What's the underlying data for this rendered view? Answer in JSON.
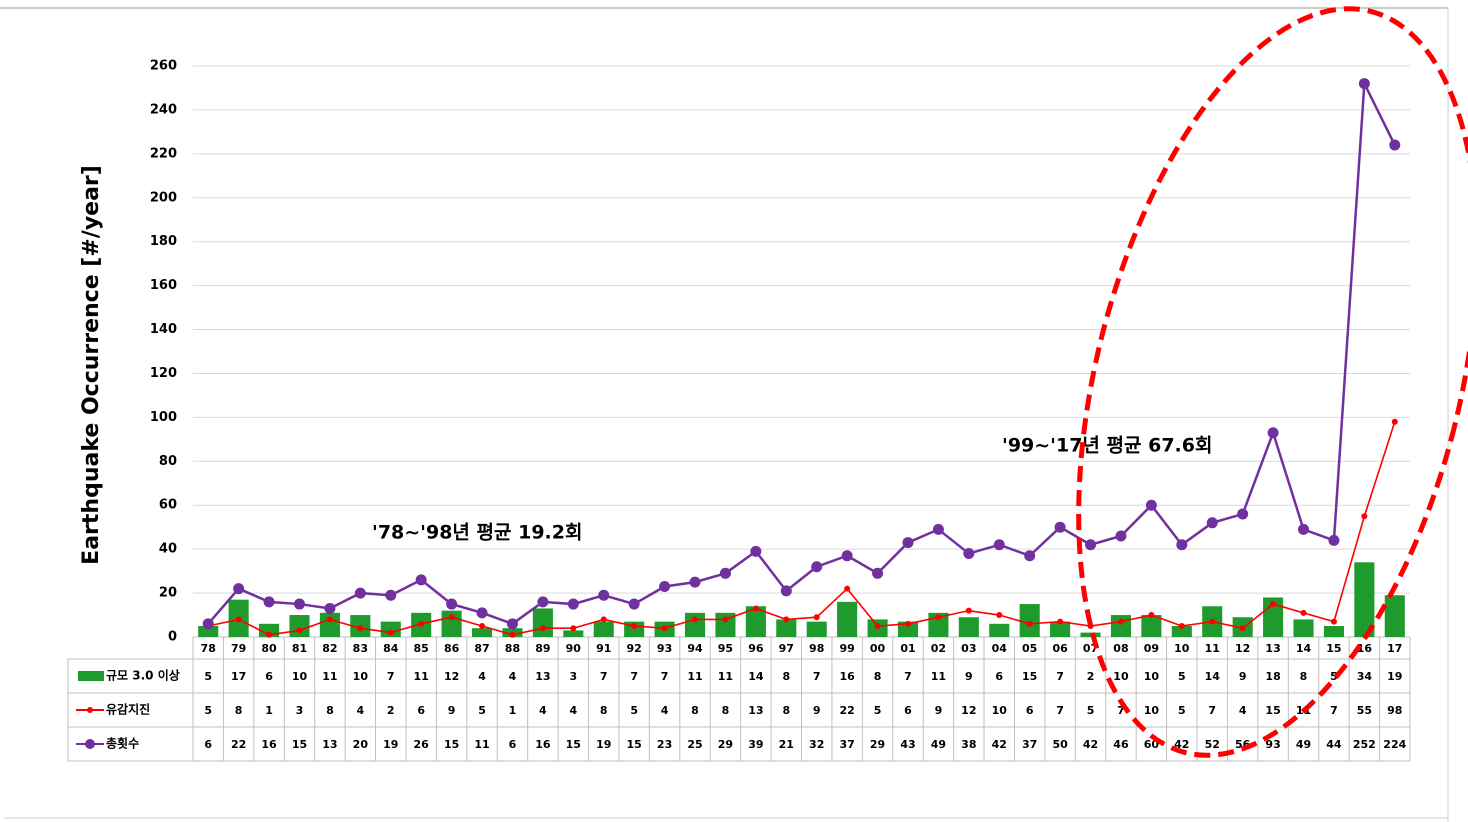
{
  "chart_data": {
    "type": "combo",
    "y_label": "Earthquake Occurrence [#/year]",
    "annotations": [
      "'78~'98년 평균 19.2회",
      "'99~'17년 평균 67.6회"
    ],
    "categories": [
      "78",
      "79",
      "80",
      "81",
      "82",
      "83",
      "84",
      "85",
      "86",
      "87",
      "88",
      "89",
      "90",
      "91",
      "92",
      "93",
      "94",
      "95",
      "96",
      "97",
      "98",
      "99",
      "00",
      "01",
      "02",
      "03",
      "04",
      "05",
      "06",
      "07",
      "08",
      "09",
      "10",
      "11",
      "12",
      "13",
      "14",
      "15",
      "16",
      "17"
    ],
    "series": [
      {
        "name": "규모 3.0 이상",
        "type": "bar",
        "color": "#1e9b2c",
        "values": [
          5,
          17,
          6,
          10,
          11,
          10,
          7,
          11,
          12,
          4,
          4,
          13,
          3,
          7,
          7,
          7,
          11,
          11,
          14,
          8,
          7,
          16,
          8,
          7,
          11,
          9,
          6,
          15,
          7,
          2,
          10,
          10,
          5,
          14,
          9,
          18,
          8,
          5,
          34,
          19
        ]
      },
      {
        "name": "유감지진",
        "type": "line",
        "color": "#ff0000",
        "values": [
          5,
          8,
          1,
          3,
          8,
          4,
          2,
          6,
          9,
          5,
          1,
          4,
          4,
          8,
          5,
          4,
          8,
          8,
          13,
          8,
          9,
          22,
          5,
          6,
          9,
          12,
          10,
          6,
          7,
          5,
          7,
          10,
          5,
          7,
          4,
          15,
          11,
          7,
          55,
          98
        ]
      },
      {
        "name": "총횟수",
        "type": "line",
        "color": "#7030a0",
        "values": [
          6,
          22,
          16,
          15,
          13,
          20,
          19,
          26,
          15,
          11,
          6,
          16,
          15,
          19,
          15,
          23,
          25,
          29,
          39,
          21,
          32,
          37,
          29,
          43,
          49,
          38,
          42,
          37,
          50,
          42,
          46,
          60,
          42,
          52,
          56,
          93,
          49,
          44,
          252,
          224
        ]
      }
    ],
    "ylim": [
      0,
      260
    ],
    "yticks": [
      0,
      20,
      40,
      60,
      80,
      100,
      120,
      140,
      160,
      180,
      200,
      220,
      240,
      260
    ],
    "grid": true
  }
}
